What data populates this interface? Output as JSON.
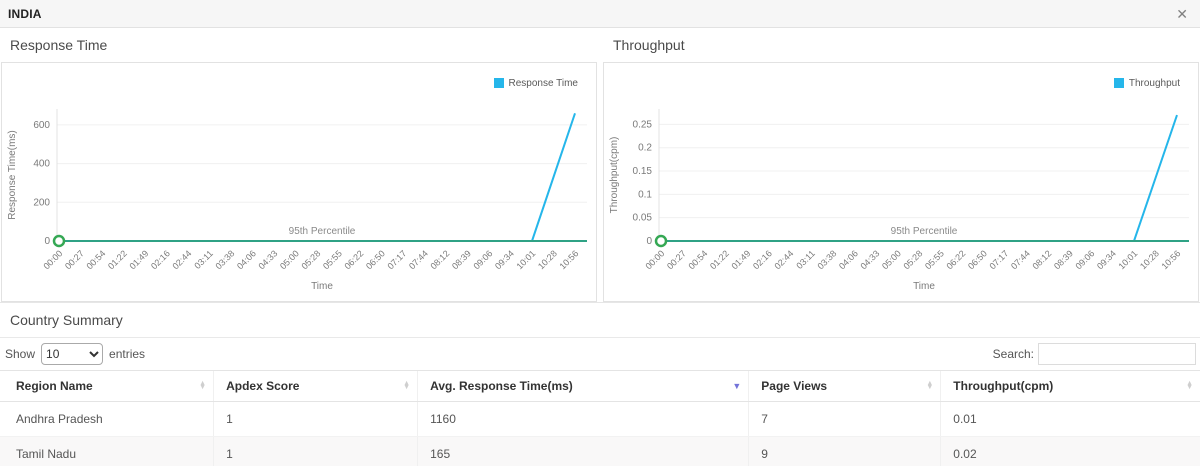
{
  "header": {
    "title": "INDIA",
    "close_label": "✕"
  },
  "icons": {
    "close": "✕",
    "sort_up": "▲",
    "sort_down": "▼",
    "sort_desc_active": "▼"
  },
  "chart_data": [
    {
      "type": "line",
      "title": "Response Time",
      "legend_label": "Response Time",
      "legend_position": "top-right",
      "x": [
        "00:00",
        "00:27",
        "00:54",
        "01:22",
        "01:49",
        "02:16",
        "02:44",
        "03:11",
        "03:38",
        "04:06",
        "04:33",
        "05:00",
        "05:28",
        "05:55",
        "06:22",
        "06:50",
        "07:17",
        "07:44",
        "08:12",
        "08:39",
        "09:06",
        "09:34",
        "10:01",
        "10:28",
        "10:56"
      ],
      "values": [
        0,
        0,
        0,
        0,
        0,
        0,
        0,
        0,
        0,
        0,
        0,
        0,
        0,
        0,
        0,
        0,
        0,
        0,
        0,
        0,
        0,
        0,
        0,
        330,
        660
      ],
      "xlabel": "Time",
      "ylabel": "Response Time(ms)",
      "yticks": [
        0,
        200,
        400,
        600
      ],
      "ylim": [
        0,
        682
      ],
      "grid": true,
      "series_color": "#25b6ea",
      "annotation": {
        "label": "95th Percentile",
        "value": 0,
        "line_color": "#2fa285",
        "marker_color": "#35a854"
      }
    },
    {
      "type": "line",
      "title": "Throughput",
      "legend_label": "Throughput",
      "legend_position": "top-right",
      "x": [
        "00:00",
        "00:27",
        "00:54",
        "01:22",
        "01:49",
        "02:16",
        "02:44",
        "03:11",
        "03:38",
        "04:06",
        "04:33",
        "05:00",
        "05:28",
        "05:55",
        "06:22",
        "06:50",
        "07:17",
        "07:44",
        "08:12",
        "08:39",
        "09:06",
        "09:34",
        "10:01",
        "10:28",
        "10:56"
      ],
      "values": [
        0,
        0,
        0,
        0,
        0,
        0,
        0,
        0,
        0,
        0,
        0,
        0,
        0,
        0,
        0,
        0,
        0,
        0,
        0,
        0,
        0,
        0,
        0,
        0.135,
        0.27
      ],
      "xlabel": "Time",
      "ylabel": "Throughput(cpm)",
      "yticks": [
        0,
        0.05,
        0.1,
        0.15,
        0.2,
        0.25
      ],
      "ylim": [
        0,
        0.283
      ],
      "grid": true,
      "series_color": "#25b6ea",
      "annotation": {
        "label": "95th Percentile",
        "value": 0,
        "line_color": "#2fa285",
        "marker_color": "#35a854"
      }
    }
  ],
  "summary": {
    "title": "Country Summary",
    "show_label": "Show",
    "entries_label": "entries",
    "page_size_selected": "10",
    "page_size_options": [
      "10"
    ],
    "search_label": "Search:",
    "search_value": "",
    "table": {
      "columns": [
        {
          "label": "Region Name",
          "sort": "unsorted"
        },
        {
          "label": "Apdex Score",
          "sort": "unsorted"
        },
        {
          "label": "Avg. Response Time(ms)",
          "sort": "desc"
        },
        {
          "label": "Page Views",
          "sort": "unsorted"
        },
        {
          "label": "Throughput(cpm)",
          "sort": "unsorted"
        }
      ],
      "col_widths": [
        "17.8%",
        "17%",
        "27.6%",
        "16%",
        "21.6%"
      ],
      "rows": [
        [
          "Andhra Pradesh",
          "1",
          "1160",
          "7",
          "0.01"
        ],
        [
          "Tamil Nadu",
          "1",
          "165",
          "9",
          "0.02"
        ]
      ]
    }
  }
}
